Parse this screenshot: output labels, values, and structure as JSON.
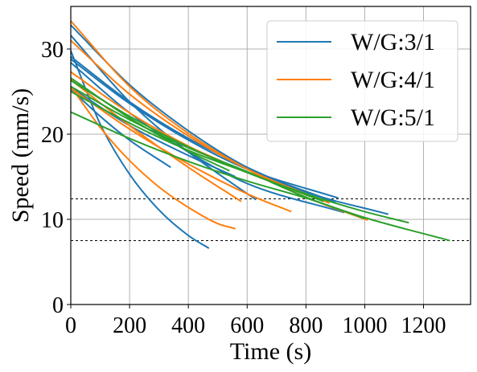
{
  "chart_data": {
    "type": "line",
    "xlabel": "Time (s)",
    "ylabel": "Speed (mm/s)",
    "xlim": [
      0,
      1360
    ],
    "ylim": [
      0,
      35
    ],
    "xticks": [
      0,
      200,
      400,
      600,
      800,
      1000,
      1200
    ],
    "yticks": [
      0,
      10,
      20,
      30
    ],
    "grid": true,
    "legend_position": "top-right",
    "reference_lines": [
      12.4,
      7.5
    ],
    "series": [
      {
        "name": "W/G:3/1",
        "color": "#1f77b4",
        "curves": [
          {
            "x": [
              0,
              100,
              200,
              300,
              400,
              470
            ],
            "y": [
              29.8,
              21.2,
              15.3,
              11.1,
              8.1,
              6.6
            ]
          },
          {
            "x": [
              0,
              100,
              200,
              340
            ],
            "y": [
              25.3,
              22.1,
              19.3,
              16.1
            ]
          },
          {
            "x": [
              0,
              200,
              400,
              630
            ],
            "y": [
              31.6,
              23.8,
              17.9,
              12.3
            ]
          },
          {
            "x": [
              0,
              200,
              400,
              600,
              910
            ],
            "y": [
              28.8,
              23.6,
              19.3,
              15.9,
              12.5
            ]
          },
          {
            "x": [
              0,
              200,
              400,
              600,
              800,
              1080
            ],
            "y": [
              29.1,
              23.8,
              19.5,
              16.1,
              13.2,
              10.6
            ]
          },
          {
            "x": [
              0,
              200,
              400,
              600,
              930
            ],
            "y": [
              28.4,
              22.5,
              17.9,
              14.2,
              10.8
            ]
          },
          {
            "x": [
              0,
              200,
              400,
              560
            ],
            "y": [
              25.5,
              21.0,
              17.5,
              15.0
            ]
          },
          {
            "x": [
              0,
              200,
              400,
              600,
              900
            ],
            "y": [
              32.8,
              25.8,
              20.4,
              16.1,
              12.0
            ]
          }
        ]
      },
      {
        "name": "W/G:4/1",
        "color": "#ff7f0e",
        "curves": [
          {
            "x": [
              0,
              100,
              200,
              300,
              400,
              500,
              560
            ],
            "y": [
              25.6,
              20.8,
              16.9,
              13.8,
              11.4,
              9.5,
              8.9
            ]
          },
          {
            "x": [
              0,
              200,
              400,
              580
            ],
            "y": [
              26.4,
              21.0,
              16.1,
              12.1
            ]
          },
          {
            "x": [
              0,
              200,
              400,
              600,
              750
            ],
            "y": [
              25.4,
              20.6,
              16.5,
              13.0,
              10.9
            ]
          },
          {
            "x": [
              0,
              200,
              400,
              600,
              800,
              1010
            ],
            "y": [
              33.3,
              25.6,
              20.1,
              15.9,
              12.6,
              9.9
            ]
          },
          {
            "x": [
              0,
              200,
              400,
              600,
              880
            ],
            "y": [
              31.0,
              24.7,
              19.8,
              15.9,
              11.9
            ]
          },
          {
            "x": [
              0,
              200,
              400,
              650
            ],
            "y": [
              27.3,
              22.5,
              18.6,
              14.8
            ]
          }
        ]
      },
      {
        "name": "W/G:5/1",
        "color": "#2ca02c",
        "curves": [
          {
            "x": [
              0,
              200,
              400,
              600,
              800,
              1000,
              1150
            ],
            "y": [
              26.3,
              22.1,
              18.5,
              15.5,
              13.0,
              10.9,
              9.6
            ]
          },
          {
            "x": [
              0,
              200,
              400,
              600,
              800,
              1000,
              1290
            ],
            "y": [
              22.6,
              19.5,
              16.8,
              14.5,
              12.5,
              10.2,
              7.5
            ]
          },
          {
            "x": [
              0,
              200,
              400,
              600,
              800,
              1000
            ],
            "y": [
              25.6,
              21.7,
              18.4,
              15.6,
              12.6,
              10.1
            ]
          },
          {
            "x": [
              0,
              200,
              400,
              600,
              860
            ],
            "y": [
              25.0,
              21.3,
              18.1,
              15.5,
              12.1
            ]
          },
          {
            "x": [
              0,
              200,
              400,
              540
            ],
            "y": [
              26.6,
              21.9,
              18.0,
              15.7
            ]
          }
        ]
      }
    ]
  }
}
